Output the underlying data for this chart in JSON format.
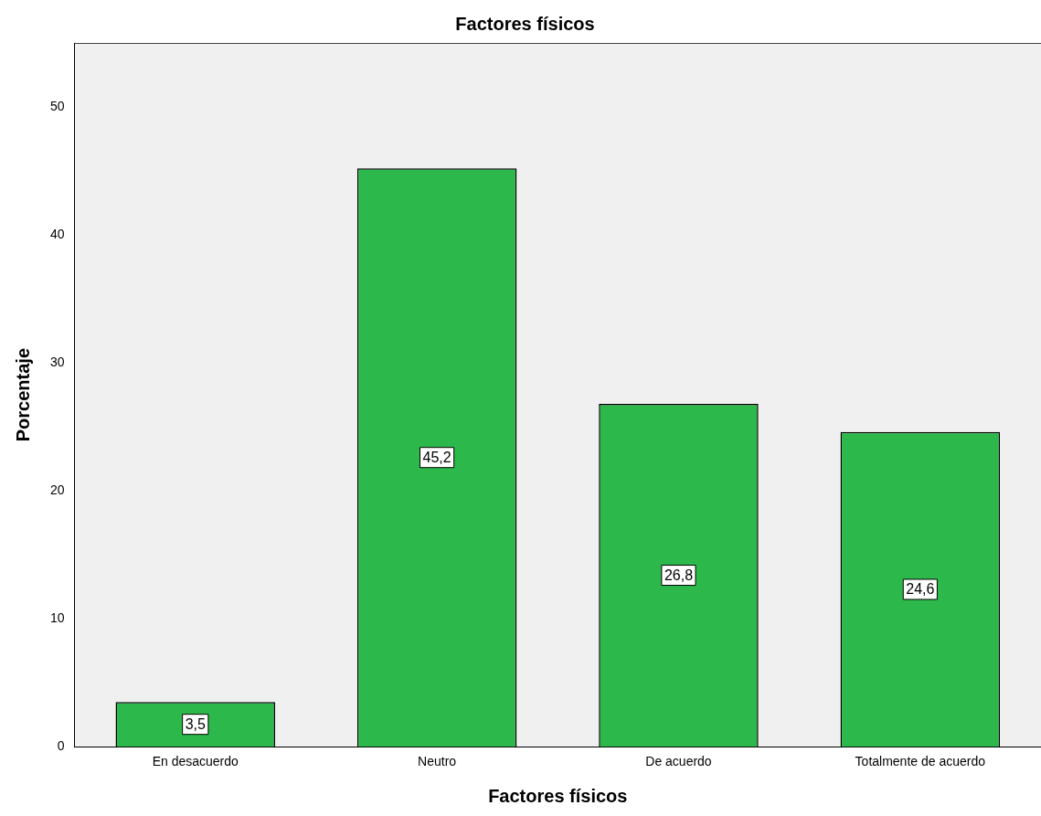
{
  "chart_data": {
    "type": "bar",
    "title": "Factores físicos",
    "xlabel": "Factores físicos",
    "ylabel": "Porcentaje",
    "categories": [
      "En desacuerdo",
      "Neutro",
      "De acuerdo",
      "Totalmente de acuerdo"
    ],
    "values": [
      3.5,
      45.2,
      26.8,
      24.6
    ],
    "color": "#2db84b",
    "ylim": [
      0,
      55
    ],
    "yticks": [
      0,
      10,
      20,
      30,
      40,
      50
    ],
    "value_labels": [
      "3,5",
      "45,2",
      "26,8",
      "24,6"
    ],
    "grid": false,
    "legend": false
  }
}
